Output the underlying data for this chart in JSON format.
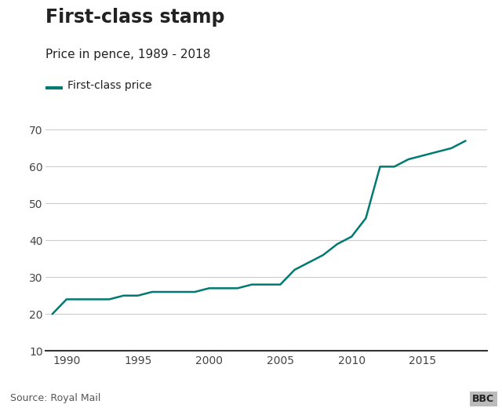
{
  "title": "First-class stamp",
  "subtitle": "Price in pence, 1989 - 2018",
  "legend_label": "First-class price",
  "source": "Source: Royal Mail",
  "line_color": "#007A73",
  "line_width": 1.8,
  "background_color": "#ffffff",
  "years": [
    1989,
    1990,
    1991,
    1992,
    1993,
    1994,
    1995,
    1996,
    1997,
    1998,
    1999,
    2000,
    2001,
    2002,
    2003,
    2004,
    2005,
    2006,
    2007,
    2008,
    2009,
    2010,
    2011,
    2012,
    2013,
    2014,
    2015,
    2016,
    2017,
    2018
  ],
  "prices": [
    20,
    24,
    24,
    24,
    24,
    25,
    25,
    26,
    26,
    26,
    26,
    27,
    27,
    27,
    28,
    28,
    28,
    32,
    34,
    36,
    39,
    41,
    46,
    60,
    60,
    62,
    63,
    64,
    65,
    67
  ],
  "ylim": [
    10,
    72
  ],
  "yticks": [
    10,
    20,
    30,
    40,
    50,
    60,
    70
  ],
  "xlim": [
    1988.5,
    2019.5
  ],
  "xticks": [
    1990,
    1995,
    2000,
    2005,
    2010,
    2015
  ],
  "grid_color": "#cccccc",
  "axis_line_color": "#333333",
  "tick_color": "#444444",
  "title_fontsize": 17,
  "subtitle_fontsize": 11,
  "legend_fontsize": 10,
  "tick_fontsize": 10,
  "source_fontsize": 9,
  "text_color": "#222222",
  "bbc_bg": "#bbbbbb",
  "bbc_text": "#222222"
}
